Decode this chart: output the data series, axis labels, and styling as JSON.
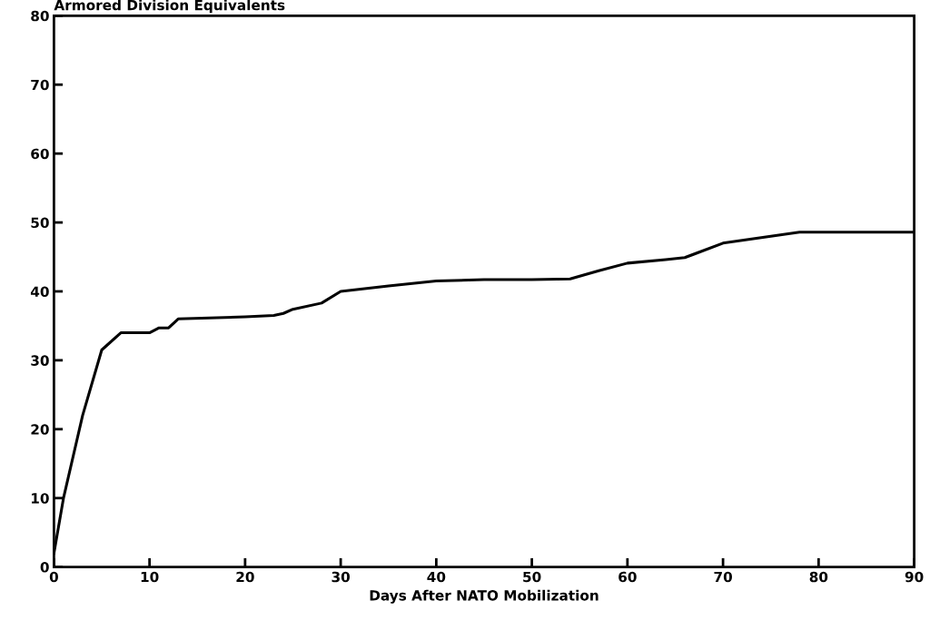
{
  "chart_data": {
    "type": "line",
    "ylabel": "Armored Division Equivalents",
    "xlabel": "Days After NATO Mobilization",
    "x": [
      0,
      1,
      3,
      5,
      7,
      10,
      11,
      12,
      13,
      20,
      23,
      24,
      25,
      28,
      30,
      35,
      40,
      45,
      50,
      54,
      57,
      60,
      64,
      66,
      70,
      75,
      78,
      90
    ],
    "series": [
      {
        "color": "#000000",
        "values": [
          2,
          10,
          22,
          31.5,
          34,
          34,
          34.7,
          34.7,
          36,
          36.3,
          36.5,
          36.8,
          37.4,
          38.3,
          40,
          40.8,
          41.5,
          41.7,
          41.7,
          41.8,
          43,
          44.1,
          44.6,
          44.9,
          47,
          48,
          48.6,
          48.6
        ]
      }
    ],
    "xlim": [
      0,
      90
    ],
    "ylim": [
      0,
      80
    ],
    "xticks": [
      0,
      10,
      20,
      30,
      40,
      50,
      60,
      70,
      80,
      90
    ],
    "yticks": [
      0,
      10,
      20,
      30,
      40,
      50,
      60,
      70,
      80
    ],
    "grid": false,
    "legend": false,
    "marker": "none",
    "line_style": "solid"
  }
}
